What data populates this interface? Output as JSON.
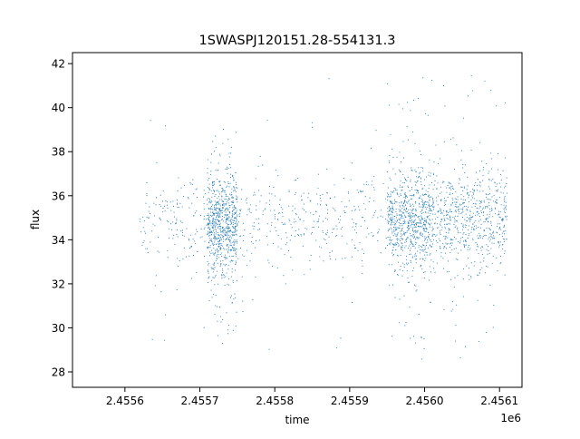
{
  "chart_data": {
    "type": "scatter",
    "title": "1SWASPJ120151.28-554131.3",
    "xlabel": "time",
    "ylabel": "flux",
    "x_offset_label": "1e6",
    "xlim": [
      2.45553,
      2.45613
    ],
    "ylim": [
      27.3,
      42.5
    ],
    "x_ticks": [
      2.4556,
      2.4557,
      2.4558,
      2.4559,
      2.456,
      2.4561
    ],
    "x_tick_labels": [
      "2.4556",
      "2.4557",
      "2.4558",
      "2.4559",
      "2.4560",
      "2.4561"
    ],
    "y_ticks": [
      28,
      30,
      32,
      34,
      36,
      38,
      40,
      42
    ],
    "y_tick_labels": [
      "28",
      "30",
      "32",
      "34",
      "36",
      "38",
      "40",
      "42"
    ],
    "grid": false,
    "legend": "none",
    "marker_color": "#1f77b4",
    "series": [
      {
        "segments": [
          {
            "x_start": 2.45562,
            "x_end": 2.456,
            "center": 34.9,
            "spread": 1.0,
            "low_tail": 29.0,
            "high_tail": 41.6
          },
          {
            "x_start": 2.45571,
            "x_end": 2.45575,
            "center": 34.8,
            "spread": 1.2,
            "low_tail": 29.5,
            "high_tail": 39.5
          }
        ]
      },
      {
        "segments": [
          {
            "x_start": 2.45595,
            "x_end": 2.45601,
            "center": 34.9,
            "spread": 1.1,
            "low_tail": 28.5,
            "high_tail": 41.6
          },
          {
            "x_start": 2.45601,
            "x_end": 2.45611,
            "center": 35.0,
            "spread": 1.2,
            "low_tail": 28.0,
            "high_tail": 41.7
          }
        ]
      }
    ]
  }
}
